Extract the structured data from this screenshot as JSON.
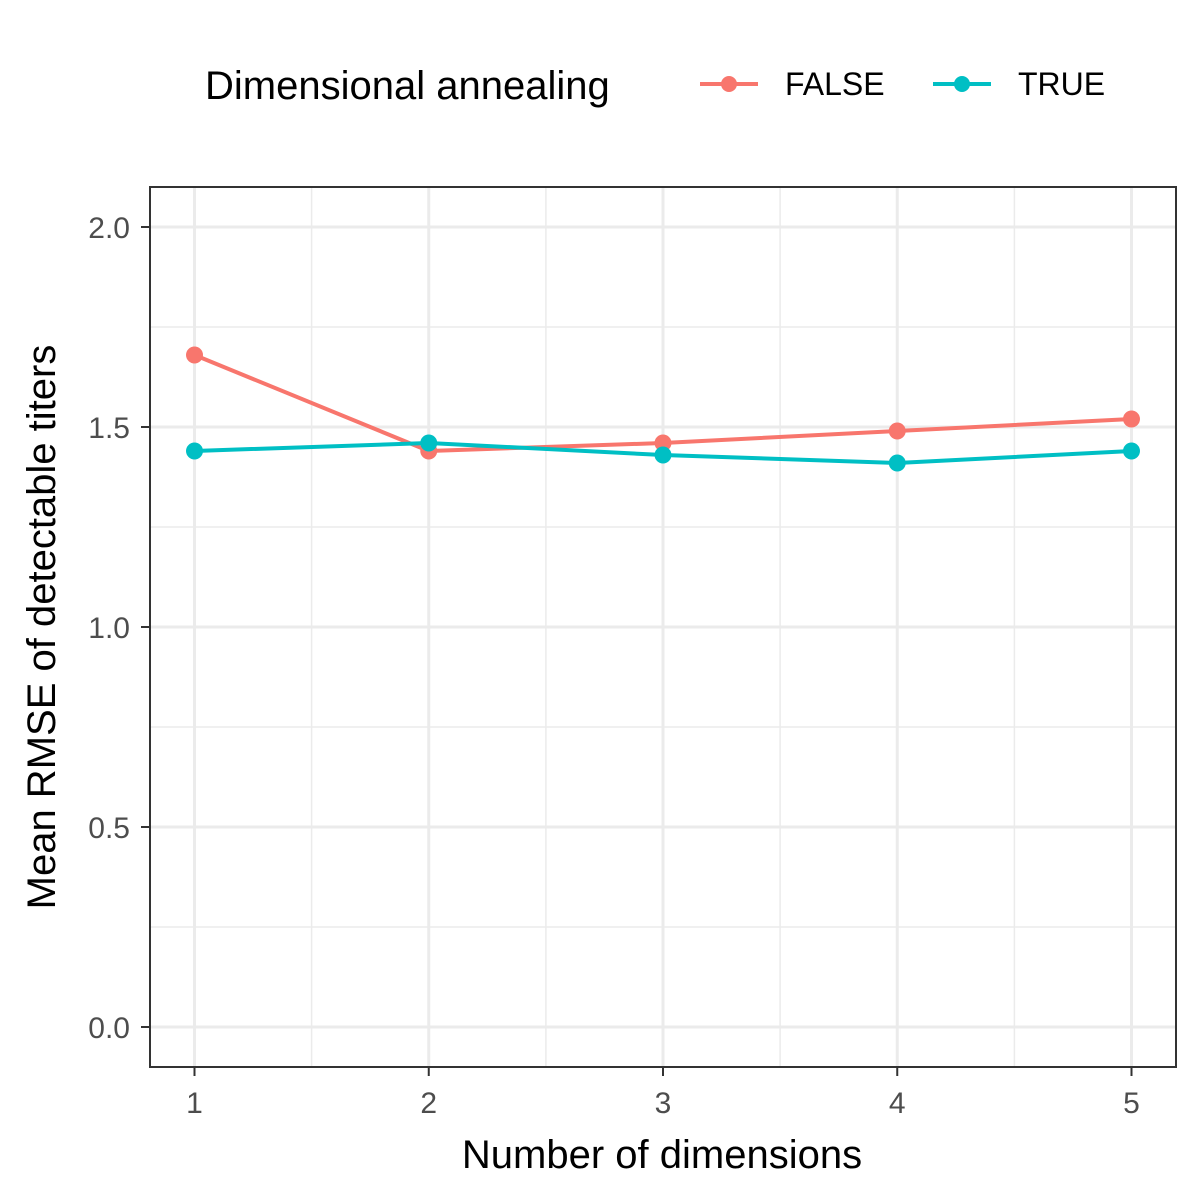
{
  "chart_data": {
    "type": "line",
    "title": "",
    "xlabel": "Number of dimensions",
    "ylabel": "Mean RMSE of detectable titers",
    "x": [
      1,
      2,
      3,
      4,
      5
    ],
    "x_tick_labels": [
      "1",
      "2",
      "3",
      "4",
      "5"
    ],
    "xlim": [
      0.81,
      5.19
    ],
    "ylim": [
      -0.1,
      2.1
    ],
    "y_ticks": [
      0.0,
      0.5,
      1.0,
      1.5,
      2.0
    ],
    "y_tick_labels": [
      "0.0",
      "0.5",
      "1.0",
      "1.5",
      "2.0"
    ],
    "grid": true,
    "legend": {
      "title": "Dimensional annealing",
      "position": "top"
    },
    "series": [
      {
        "name": "FALSE",
        "color": "#F8766D",
        "values": [
          1.68,
          1.44,
          1.46,
          1.49,
          1.52
        ]
      },
      {
        "name": "TRUE",
        "color": "#00BFC4",
        "values": [
          1.44,
          1.46,
          1.43,
          1.41,
          1.44
        ]
      }
    ]
  }
}
